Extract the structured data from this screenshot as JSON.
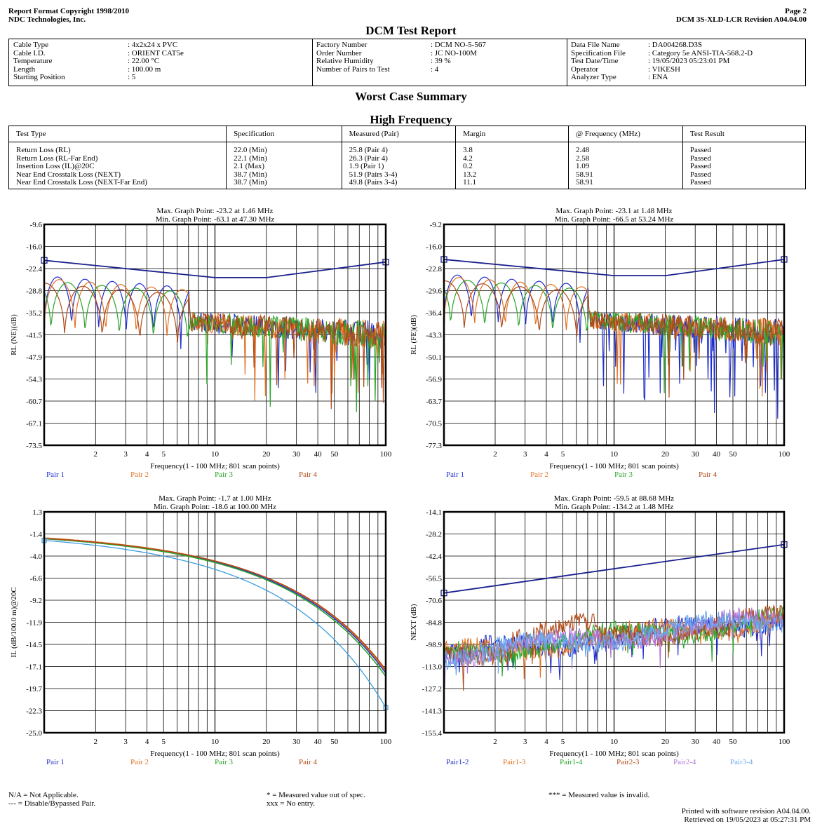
{
  "header": {
    "left_line1": "Report Format Copyright 1998/2010",
    "left_line2": "NDC Technologies, Inc.",
    "page": "Page 2",
    "revision": "DCM 3S-XLD-LCR Revision A04.04.00"
  },
  "title": "DCM Test Report",
  "info": {
    "col1": [
      {
        "label": "Cable Type",
        "value": ": 4x2x24 x PVC"
      },
      {
        "label": "Cable I.D.",
        "value": ": ORIENT  CAT5e"
      },
      {
        "label": "Temperature",
        "value": ": 22.00 °C"
      },
      {
        "label": "Length",
        "value": ": 100.00 m"
      },
      {
        "label": "Starting Position",
        "value": ": 5"
      }
    ],
    "col2": [
      {
        "label": "Factory Number",
        "value": ": DCM NO-5-567"
      },
      {
        "label": "Order Number",
        "value": ": JC NO-100M"
      },
      {
        "label": "Relative Humidity",
        "value": ": 39 %"
      },
      {
        "label": "Number of Pairs to Test",
        "value": ": 4"
      }
    ],
    "col3": [
      {
        "label": "Data File Name",
        "value": ": DA004268.D3S"
      },
      {
        "label": "Specification File",
        "value": ": Category 5e ANSI-TIA-568.2-D"
      },
      {
        "label": "Test Date/Time",
        "value": ": 19/05/2023 05:23:01 PM"
      },
      {
        "label": "Operator",
        "value": ": VIKESH"
      },
      {
        "label": "Analyzer Type",
        "value": ": ENA"
      }
    ]
  },
  "worst_case_title": "Worst Case Summary",
  "high_freq_title": "High Frequency",
  "summary": {
    "headers": [
      "Test Type",
      "Specification",
      "Measured (Pair)",
      "Margin",
      "@ Frequency (MHz)",
      "Test Result"
    ],
    "rows": [
      [
        "Return Loss (RL)",
        "22.0 (Min)",
        "25.8 (Pair 4)",
        "3.8",
        "2.48",
        "Passed"
      ],
      [
        "Return Loss (RL-Far End)",
        "22.1 (Min)",
        "26.3 (Pair 4)",
        "4.2",
        "2.58",
        "Passed"
      ],
      [
        "Insertion Loss (IL)@20C",
        "2.1 (Max)",
        "1.9 (Pair 1)",
        "0.2",
        "1.09",
        "Passed"
      ],
      [
        "Near End Crosstalk Loss (NEXT)",
        "38.7 (Min)",
        "51.9 (Pairs 3-4)",
        "13.2",
        "58.91",
        "Passed"
      ],
      [
        "Near End Crosstalk Loss (NEXT-Far End)",
        "38.7 (Min)",
        "49.8 (Pairs 3-4)",
        "11.1",
        "58.91",
        "Passed"
      ]
    ]
  },
  "colors": {
    "limit": "#1a1f8c",
    "pair1": "#1f2fcf",
    "pair2": "#e27322",
    "pair3": "#2aa52a",
    "pair4": "#b04a18",
    "pair2_4": "#b070d8",
    "pair3_4": "#6aa8f0"
  },
  "chart_data": [
    {
      "type": "line",
      "title": "Max. Graph Point: -23.2 at 1.46 MHz",
      "subtitle": "Min. Graph Point: -63.1 at 47.30 MHz",
      "xlabel": "Frequency(1 - 100 MHz; 801 scan points)",
      "ylabel": "RL (NE)(dB)",
      "xscale": "log",
      "xlim": [
        1,
        100
      ],
      "ylim": [
        -73.5,
        -9.6
      ],
      "yticks": [
        "-9.6",
        "-16.0",
        "-22.4",
        "-28.8",
        "-35.2",
        "-41.5",
        "-47.9",
        "-54.3",
        "-60.7",
        "-67.1",
        "-73.5"
      ],
      "xticks": [
        "2",
        "3",
        "4",
        "5",
        "10",
        "20",
        "30",
        "40",
        "50",
        "100"
      ],
      "legend": [
        "Pair 1",
        "Pair 2",
        "Pair 3",
        "Pair 4"
      ],
      "limit": {
        "x": [
          1,
          10,
          20,
          100
        ],
        "y": [
          -20.0,
          -25.0,
          -25.0,
          -20.5
        ]
      }
    },
    {
      "type": "line",
      "title": "Max. Graph Point: -23.1 at 1.48 MHz",
      "subtitle": "Min. Graph Point: -66.5 at 53.24 MHz",
      "xlabel": "Frequency(1 - 100 MHz; 801 scan points)",
      "ylabel": "RL (FE)(dB)",
      "xscale": "log",
      "xlim": [
        1,
        100
      ],
      "ylim": [
        -77.3,
        -9.2
      ],
      "yticks": [
        "-9.2",
        "-16.0",
        "-22.8",
        "-29.6",
        "-36.4",
        "-43.3",
        "-50.1",
        "-56.9",
        "-63.7",
        "-70.5",
        "-77.3"
      ],
      "xticks": [
        "2",
        "3",
        "4",
        "5",
        "10",
        "20",
        "30",
        "40",
        "50",
        "100"
      ],
      "legend": [
        "Pair 1",
        "Pair 2",
        "Pair 3",
        "Pair 4"
      ],
      "limit": {
        "x": [
          1,
          10,
          20,
          100
        ],
        "y": [
          -20.0,
          -25.0,
          -25.0,
          -20.0
        ]
      }
    },
    {
      "type": "line",
      "title": "Max. Graph Point: -1.7 at 1.00 MHz",
      "subtitle": "Min. Graph Point: -18.6 at 100.00 MHz",
      "xlabel": "Frequency(1 - 100 MHz; 801 scan points)",
      "ylabel": "IL (dB/100.0 m)@20C",
      "xscale": "log",
      "xlim": [
        1,
        100
      ],
      "ylim": [
        -25.0,
        1.3
      ],
      "yticks": [
        "1.3",
        "-1.4",
        "-4.0",
        "-6.6",
        "-9.2",
        "-11.9",
        "-14.5",
        "-17.1",
        "-19.7",
        "-22.3",
        "-25.0"
      ],
      "xticks": [
        "2",
        "3",
        "4",
        "5",
        "10",
        "20",
        "30",
        "40",
        "50",
        "100"
      ],
      "legend": [
        "Pair 1",
        "Pair 2",
        "Pair 3",
        "Pair 4"
      ],
      "limit": {
        "x": [
          1,
          100
        ],
        "y": [
          -2.1,
          -22.0
        ]
      }
    },
    {
      "type": "line",
      "title": "Max. Graph Point: -59.5 at 88.68 MHz",
      "subtitle": "Min. Graph Point: -134.2 at 1.48 MHz",
      "xlabel": "Frequency(1 - 100 MHz; 801 scan points)",
      "ylabel": "NEXT (dB)",
      "xscale": "log",
      "xlim": [
        1,
        100
      ],
      "ylim": [
        -155.4,
        -14.1
      ],
      "yticks": [
        "-14.1",
        "-28.2",
        "-42.4",
        "-56.5",
        "-70.6",
        "-84.8",
        "-98.9",
        "-113.0",
        "-127.2",
        "-141.3",
        "-155.4"
      ],
      "xticks": [
        "2",
        "3",
        "4",
        "5",
        "10",
        "20",
        "30",
        "40",
        "50",
        "100"
      ],
      "legend": [
        "Pair1-2",
        "Pair1-3",
        "Pair1-4",
        "Pair2-3",
        "Pair2-4",
        "Pair3-4"
      ],
      "limit": {
        "x": [
          1,
          100
        ],
        "y": [
          -66.0,
          -35.0
        ]
      }
    }
  ],
  "footer": {
    "na": "N/A = Not Applicable.",
    "disabled": "--- = Disable/Bypassed Pair.",
    "star": "*  = Measured value out of spec.",
    "xxx": "xxx = No entry.",
    "invalid": "*** = Measured value is invalid.",
    "printed": "Printed with software revision A04.04.00.",
    "retrieved": "Retrieved on 19/05/2023 at 05:27:31 PM"
  }
}
